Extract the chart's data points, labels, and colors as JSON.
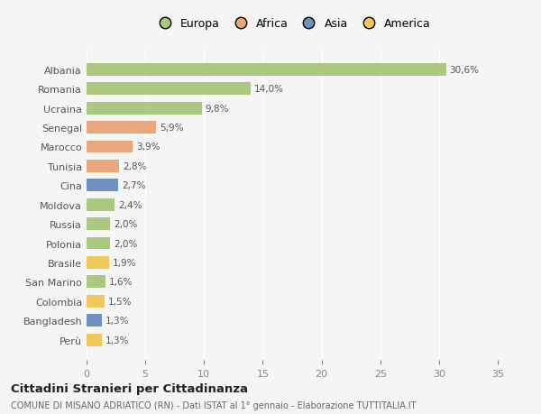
{
  "countries": [
    "Albania",
    "Romania",
    "Ucraina",
    "Senegal",
    "Marocco",
    "Tunisia",
    "Cina",
    "Moldova",
    "Russia",
    "Polonia",
    "Brasile",
    "San Marino",
    "Colombia",
    "Bangladesh",
    "Perù"
  ],
  "values": [
    30.6,
    14.0,
    9.8,
    5.9,
    3.9,
    2.8,
    2.7,
    2.4,
    2.0,
    2.0,
    1.9,
    1.6,
    1.5,
    1.3,
    1.3
  ],
  "labels": [
    "30,6%",
    "14,0%",
    "9,8%",
    "5,9%",
    "3,9%",
    "2,8%",
    "2,7%",
    "2,4%",
    "2,0%",
    "2,0%",
    "1,9%",
    "1,6%",
    "1,5%",
    "1,3%",
    "1,3%"
  ],
  "continents": [
    "Europa",
    "Europa",
    "Europa",
    "Africa",
    "Africa",
    "Africa",
    "Asia",
    "Europa",
    "Europa",
    "Europa",
    "America",
    "Europa",
    "America",
    "Asia",
    "America"
  ],
  "colors": {
    "Europa": "#aac97e",
    "Africa": "#e8a87c",
    "Asia": "#7090c0",
    "America": "#f0c95a"
  },
  "legend_items": [
    "Europa",
    "Africa",
    "Asia",
    "America"
  ],
  "legend_colors": [
    "#aac97e",
    "#e8a87c",
    "#7090c0",
    "#f0c95a"
  ],
  "xlim": [
    0,
    35
  ],
  "xticks": [
    0,
    5,
    10,
    15,
    20,
    25,
    30,
    35
  ],
  "title": "Cittadini Stranieri per Cittadinanza",
  "subtitle": "COMUNE DI MISANO ADRIATICO (RN) - Dati ISTAT al 1° gennaio - Elaborazione TUTTITALIA.IT",
  "background_color": "#f5f5f5",
  "bar_height": 0.65
}
